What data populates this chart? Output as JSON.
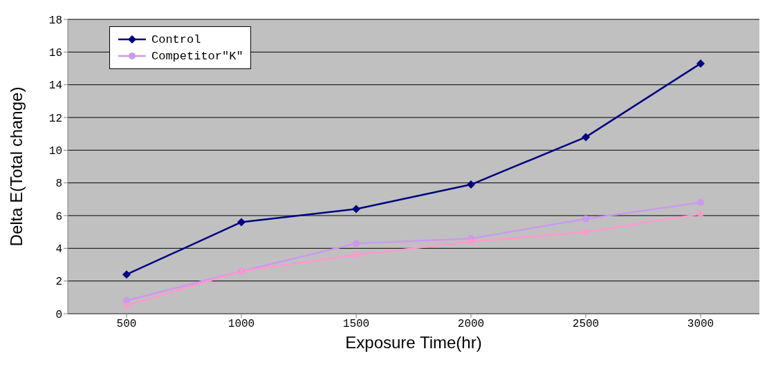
{
  "chart_data": {
    "type": "line",
    "xlabel": "Exposure Time(hr)",
    "ylabel": "Delta E(Total change)",
    "categories": [
      "500",
      "1000",
      "1500",
      "2000",
      "2500",
      "3000"
    ],
    "series": [
      {
        "name": "Control",
        "color": "#000080",
        "marker": "diamond",
        "values": [
          2.4,
          5.6,
          6.4,
          7.9,
          10.8,
          15.3
        ]
      },
      {
        "color": "#ff99cc",
        "marker": "cross",
        "values": [
          0.5,
          2.6,
          3.6,
          4.4,
          5.0,
          6.1
        ]
      },
      {
        "name": "Competitor\"K\"",
        "color": "#cc99ee",
        "marker": "circle",
        "values": [
          0.8,
          2.6,
          4.3,
          4.6,
          5.8,
          6.8
        ]
      }
    ],
    "ylim": [
      0,
      18
    ],
    "yticks": [
      0,
      2,
      4,
      6,
      8,
      10,
      12,
      14,
      16,
      18
    ],
    "grid": "y",
    "legend": "top left",
    "line_style": "solid"
  }
}
